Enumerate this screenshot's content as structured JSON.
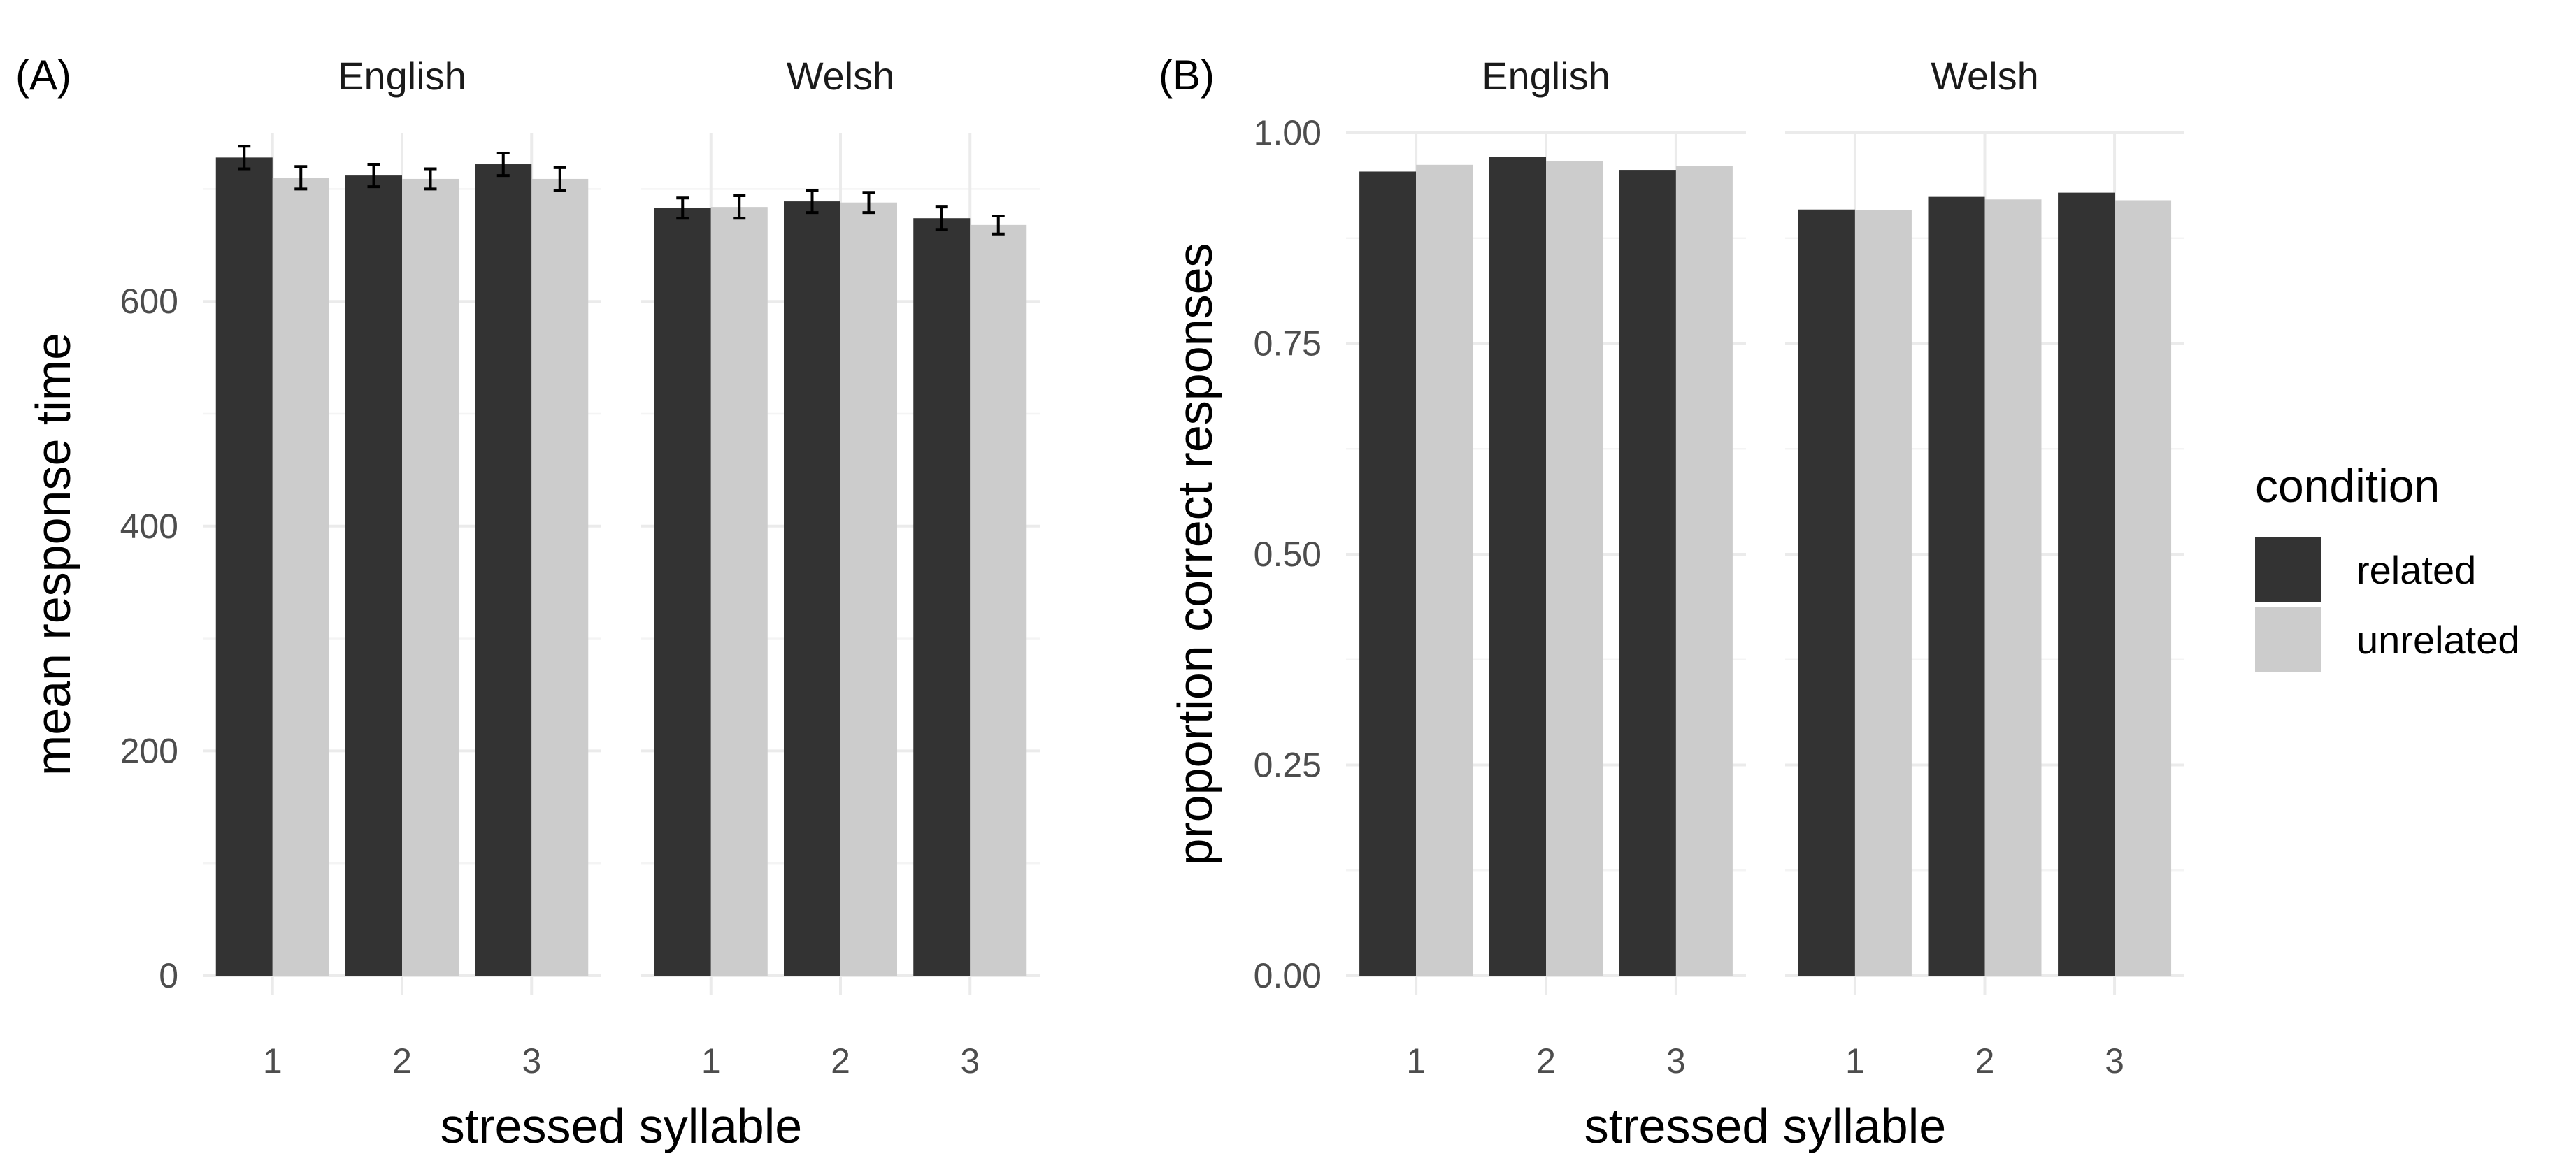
{
  "chart_data": [
    {
      "type": "bar",
      "panel_label": "(A)",
      "facets": [
        "English",
        "Welsh"
      ],
      "categories": [
        "1",
        "2",
        "3"
      ],
      "xlabel": "stressed syllable",
      "ylabel": "mean response time",
      "ylim": [
        0,
        750
      ],
      "yticks": [
        0,
        200,
        400,
        600
      ],
      "ytick_labels": [
        "0",
        "200",
        "400",
        "600"
      ],
      "error_bars": true,
      "series": [
        {
          "name": "related",
          "color": "#333333",
          "values": {
            "English": [
              728,
              712,
              722
            ],
            "Welsh": [
              683,
              689,
              674
            ]
          },
          "err": {
            "English": [
              10,
              10,
              10
            ],
            "Welsh": [
              9,
              10,
              10
            ]
          }
        },
        {
          "name": "unrelated",
          "color": "#cccccc",
          "values": {
            "English": [
              710,
              709,
              709
            ],
            "Welsh": [
              684,
              688,
              668
            ]
          },
          "err": {
            "English": [
              10,
              9,
              10
            ],
            "Welsh": [
              10,
              9,
              8
            ]
          }
        }
      ]
    },
    {
      "type": "bar",
      "panel_label": "(B)",
      "facets": [
        "English",
        "Welsh"
      ],
      "categories": [
        "1",
        "2",
        "3"
      ],
      "xlabel": "stressed syllable",
      "ylabel": "proportion correct responses",
      "ylim": [
        0,
        1.0
      ],
      "yticks": [
        0,
        0.25,
        0.5,
        0.75,
        1.0
      ],
      "ytick_labels": [
        "0.00",
        "0.25",
        "0.50",
        "0.75",
        "1.00"
      ],
      "error_bars": false,
      "series": [
        {
          "name": "related",
          "color": "#333333",
          "values": {
            "English": [
              0.954,
              0.971,
              0.956
            ],
            "Welsh": [
              0.909,
              0.924,
              0.929
            ]
          }
        },
        {
          "name": "unrelated",
          "color": "#cccccc",
          "values": {
            "English": [
              0.962,
              0.966,
              0.961
            ],
            "Welsh": [
              0.908,
              0.921,
              0.92
            ]
          }
        }
      ]
    }
  ],
  "legend": {
    "title": "condition",
    "position": "right",
    "items": [
      {
        "label": "related",
        "color": "#333333"
      },
      {
        "label": "unrelated",
        "color": "#cccccc"
      }
    ]
  }
}
